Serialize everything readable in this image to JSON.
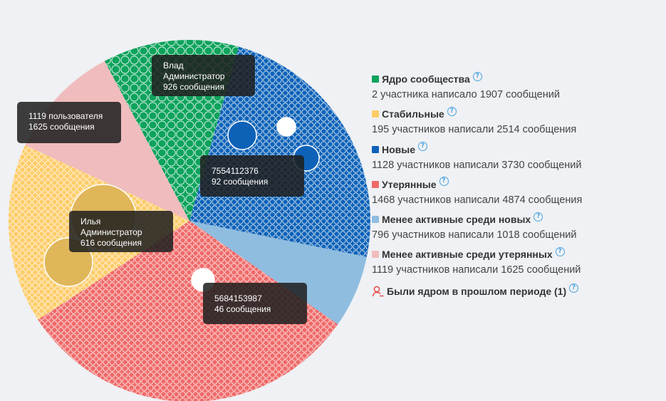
{
  "chart_data": {
    "type": "pie",
    "categories": [
      "Ядро сообщества",
      "Новые",
      "Менее активные среди новых",
      "Утерянные",
      "Стабильные",
      "Менее активные среди утерянных"
    ],
    "values": [
      1907,
      3730,
      1018,
      4874,
      2514,
      1625
    ],
    "colors": [
      "#0ea35c",
      "#0d62b8",
      "#8fbde0",
      "#ef6a69",
      "#fdcc68",
      "#f0bcbd"
    ]
  },
  "tooltips": [
    {
      "line1": "Влад",
      "line2": "Администратор",
      "line3": "926 сообщения"
    },
    {
      "line1": "1119 пользователя",
      "line2": "1625 сообщения",
      "line3": ""
    },
    {
      "line1": "7554112376",
      "line2": "92 сообщения",
      "line3": ""
    },
    {
      "line1": "Илья",
      "line2": "Администратор",
      "line3": "616 сообщения"
    },
    {
      "line1": "5684153987",
      "line2": "46 сообщения",
      "line3": ""
    }
  ],
  "legend": {
    "items": [
      {
        "title": "Ядро сообщества",
        "desc": "2 участника написало 1907 сообщений",
        "color": "#0ea35c"
      },
      {
        "title": "Стабильные",
        "desc": "195 участников написали 2514 сообщения",
        "color": "#fdcc68"
      },
      {
        "title": "Новые",
        "desc": "1128 участников написали 3730 сообщений",
        "color": "#0d62b8"
      },
      {
        "title": "Утерянные",
        "desc": "1468 участников написали 4874 сообщения",
        "color": "#ef6a69"
      },
      {
        "title": "Менее активные среди новых",
        "desc": "796 участников написали 1018 сообщений",
        "color": "#8fbde0"
      },
      {
        "title": "Менее активные среди утерянных",
        "desc": "1119 участников написали 1625 сообщений",
        "color": "#f0bcbd"
      }
    ],
    "help_glyph": "?",
    "former_core": "Были ядром в прошлом периоде (1)",
    "former_icon": "users-minus-icon"
  }
}
